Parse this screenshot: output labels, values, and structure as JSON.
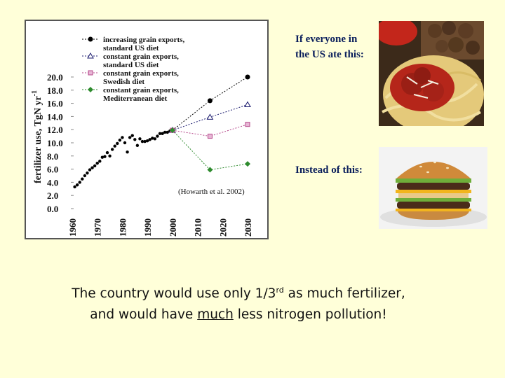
{
  "chart_data": {
    "type": "scatter",
    "ylabel_main": "fertilizer use, TgN yr",
    "ylabel_sup": "-1",
    "ylim": [
      0,
      20
    ],
    "xlim": [
      1960,
      2030
    ],
    "y_ticks": [
      "20.0",
      "18.0",
      "16.0",
      "14.0",
      "12.0",
      "10.0",
      "8.0",
      "6.0",
      "4.0",
      "2.0",
      "0.0"
    ],
    "x_ticks": [
      "1960",
      "1970",
      "1980",
      "1990",
      "2000",
      "2010",
      "2020",
      "2030"
    ],
    "citation": "(Howarth et al. 2002)",
    "historical": {
      "name": "",
      "color": "#000000",
      "x": [
        1961,
        1962,
        1963,
        1964,
        1965,
        1966,
        1967,
        1968,
        1969,
        1970,
        1971,
        1972,
        1973,
        1974,
        1975,
        1976,
        1977,
        1978,
        1979,
        1980,
        1981,
        1982,
        1983,
        1984,
        1985,
        1986,
        1987,
        1988,
        1989,
        1990,
        1991,
        1992,
        1993,
        1994,
        1995,
        1996,
        1997,
        1998,
        1999,
        2000
      ],
      "y": [
        3.3,
        3.6,
        4.0,
        4.5,
        5.0,
        5.4,
        5.9,
        6.2,
        6.5,
        6.9,
        7.2,
        7.8,
        7.9,
        8.5,
        8.0,
        9.0,
        9.5,
        9.9,
        10.4,
        10.8,
        10.0,
        8.6,
        10.8,
        11.1,
        10.5,
        9.6,
        10.6,
        10.2,
        10.2,
        10.3,
        10.5,
        10.7,
        10.6,
        11.0,
        11.4,
        11.4,
        11.6,
        11.6,
        11.8,
        11.9
      ]
    },
    "projections": [
      {
        "name": "increasing grain exports, standard US diet",
        "legend": [
          "increasing grain exports,",
          "standard US diet"
        ],
        "marker": "circle",
        "color": "#000000",
        "points": [
          [
            2000,
            11.9
          ],
          [
            2015,
            16.4
          ],
          [
            2030,
            20.0
          ]
        ]
      },
      {
        "name": "constant grain exports, standard US diet",
        "legend": [
          "constant grain exports,",
          "standard US diet"
        ],
        "marker": "triangle",
        "color": "#1A1A6E",
        "points": [
          [
            2000,
            11.9
          ],
          [
            2015,
            13.9
          ],
          [
            2030,
            15.8
          ]
        ]
      },
      {
        "name": "constant grain exports, Swedish diet",
        "legend": [
          "constant grain exports,",
          "Swedish diet"
        ],
        "marker": "square",
        "color": "#B5478A",
        "points": [
          [
            2000,
            11.9
          ],
          [
            2015,
            11.0
          ],
          [
            2030,
            12.8
          ]
        ]
      },
      {
        "name": "constant grain exports, Mediterranean diet",
        "legend": [
          "constant grain exports,",
          "Mediterranean diet"
        ],
        "marker": "diamond",
        "color": "#2E8B2E",
        "points": [
          [
            2000,
            11.9
          ],
          [
            2015,
            5.9
          ],
          [
            2030,
            6.8
          ]
        ]
      }
    ]
  },
  "captions": {
    "top_line1": "If everyone in",
    "top_line2": "the US ate this:",
    "bottom": "Instead of this:"
  },
  "images": {
    "top": "pasta-meatballs-photo",
    "bottom": "burger-photo"
  },
  "conclusion": {
    "line1_before_sup": "The country would use only 1/3",
    "line1_sup": "rd",
    "line1_after_sup": " as much fertilizer,",
    "line2_before": "and would have ",
    "line2_underline": "much",
    "line2_after": " less nitrogen pollution!"
  }
}
